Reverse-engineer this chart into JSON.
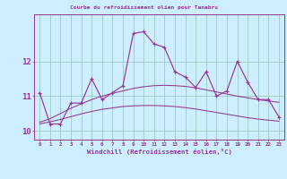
{
  "title": "Courbe du refroidissement olien pour Tanabru",
  "xlabel": "Windchill (Refroidissement éolien,°C)",
  "bg_color": "#cceeff",
  "line_color": "#993399",
  "grid_color": "#99ccbb",
  "xmin": -0.5,
  "xmax": 23.5,
  "ymin": 9.75,
  "ymax": 13.35,
  "yticks": [
    10,
    11,
    12
  ],
  "hours": [
    0,
    1,
    2,
    3,
    4,
    5,
    6,
    7,
    8,
    9,
    10,
    11,
    12,
    13,
    14,
    15,
    16,
    17,
    18,
    19,
    20,
    21,
    22,
    23
  ],
  "temp_actual": [
    11.1,
    10.2,
    10.2,
    10.8,
    10.8,
    11.5,
    10.9,
    11.1,
    11.3,
    12.8,
    12.85,
    12.5,
    12.4,
    11.7,
    11.55,
    11.25,
    11.7,
    11.0,
    11.15,
    12.0,
    11.4,
    10.9,
    10.9,
    10.4
  ],
  "temp_smooth_upper": [
    10.25,
    10.35,
    10.5,
    10.65,
    10.78,
    10.9,
    11.0,
    11.08,
    11.15,
    11.22,
    11.27,
    11.3,
    11.31,
    11.3,
    11.28,
    11.24,
    11.18,
    11.12,
    11.06,
    11.0,
    10.95,
    10.9,
    10.86,
    10.82
  ],
  "temp_smooth_lower": [
    10.2,
    10.26,
    10.33,
    10.41,
    10.49,
    10.56,
    10.62,
    10.66,
    10.7,
    10.72,
    10.73,
    10.73,
    10.72,
    10.7,
    10.67,
    10.63,
    10.58,
    10.53,
    10.48,
    10.43,
    10.38,
    10.34,
    10.31,
    10.28
  ]
}
